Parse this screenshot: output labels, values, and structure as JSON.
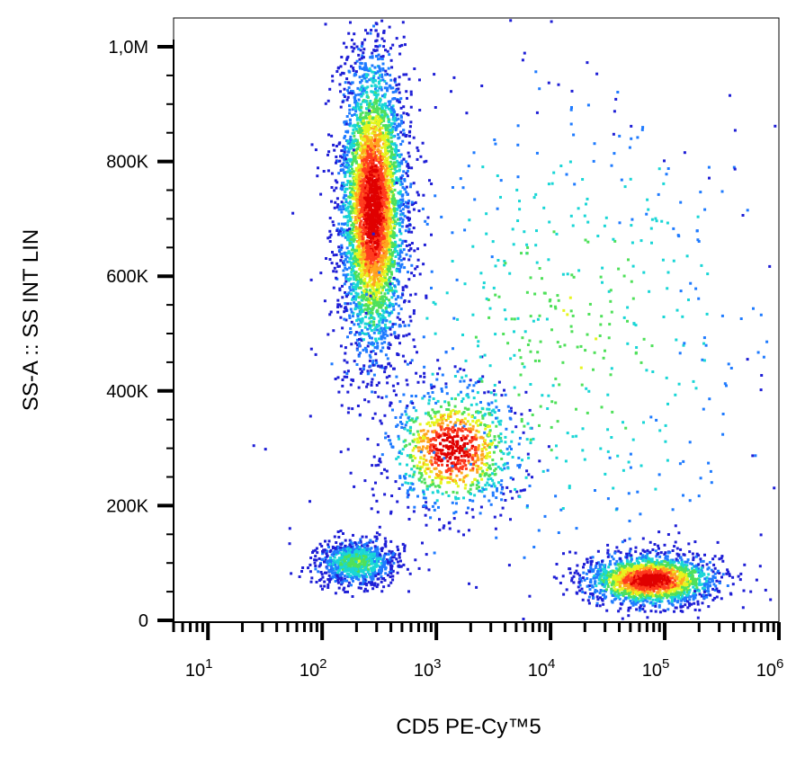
{
  "chart_data": {
    "type": "scatter",
    "title": "",
    "xlabel": "CD5  PE-Cy™5",
    "ylabel": "SS-A :: SS INT LIN",
    "x_scale": "log",
    "y_scale": "linear",
    "xlim": [
      5,
      1000000
    ],
    "ylim": [
      0,
      1000000
    ],
    "x_ticks": [
      {
        "value": 10,
        "base": "10",
        "exp": "1"
      },
      {
        "value": 100,
        "base": "10",
        "exp": "2"
      },
      {
        "value": 1000,
        "base": "10",
        "exp": "3"
      },
      {
        "value": 10000,
        "base": "10",
        "exp": "4"
      },
      {
        "value": 100000,
        "base": "10",
        "exp": "5"
      },
      {
        "value": 1000000,
        "base": "10",
        "exp": "6"
      }
    ],
    "y_ticks": [
      {
        "value": 0,
        "label": "0"
      },
      {
        "value": 200000,
        "label": "200K"
      },
      {
        "value": 400000,
        "label": "400K"
      },
      {
        "value": 600000,
        "label": "600K"
      },
      {
        "value": 800000,
        "label": "800K"
      },
      {
        "value": 1000000,
        "label": "1,0M"
      }
    ],
    "colormap": [
      "#1f1fd6",
      "#1f7bff",
      "#19d6d6",
      "#4fe05a",
      "#e6f51e",
      "#ffa51e",
      "#ff3b1e",
      "#e00000"
    ],
    "populations": [
      {
        "center_x": 280,
        "center_y": 720000,
        "spread_log_x": 0.14,
        "spread_y": 130000,
        "count": 4200
      },
      {
        "center_x": 200,
        "center_y": 100000,
        "spread_log_x": 0.18,
        "spread_y": 20000,
        "count": 900
      },
      {
        "center_x": 1400,
        "center_y": 300000,
        "spread_log_x": 0.28,
        "spread_y": 55000,
        "count": 1000
      },
      {
        "center_x": 75000,
        "center_y": 70000,
        "spread_log_x": 0.28,
        "spread_y": 22000,
        "count": 1900
      },
      {
        "center_x": 15000,
        "center_y": 500000,
        "spread_log_x": 1.0,
        "spread_y": 250000,
        "count": 650
      }
    ],
    "grid": false,
    "legend": "none"
  }
}
